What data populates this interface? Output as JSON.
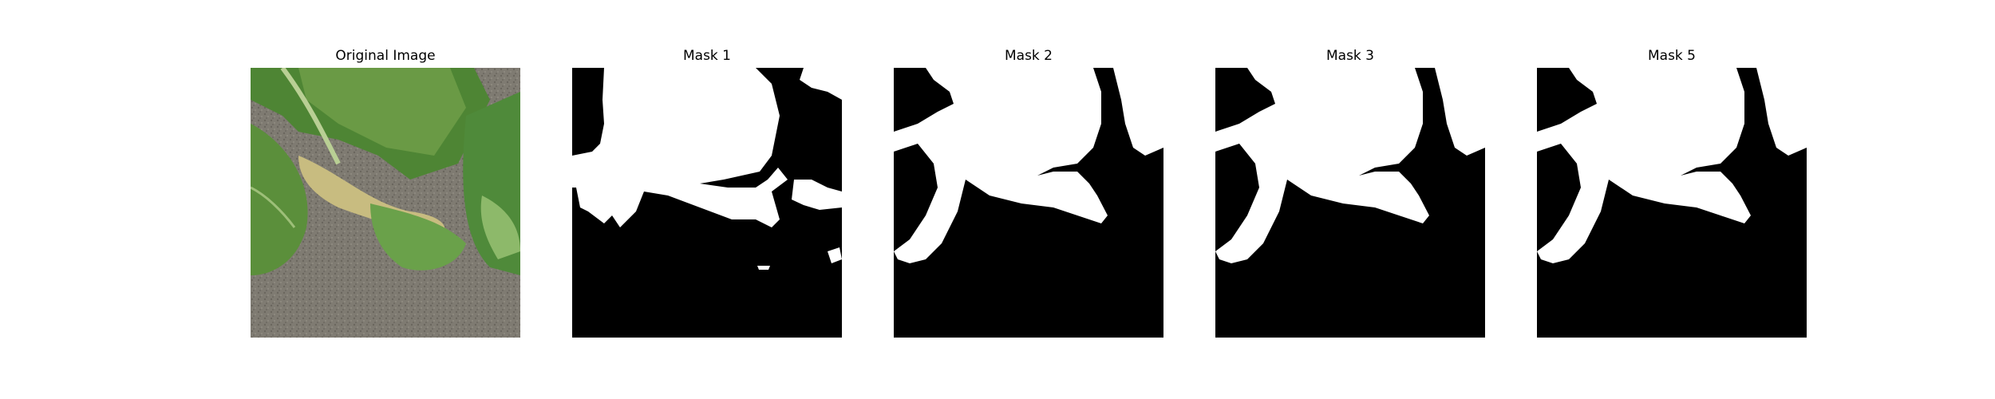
{
  "figure": {
    "panels": [
      {
        "title": "Original Image",
        "kind": "photo"
      },
      {
        "title": "Mask 1",
        "kind": "mask"
      },
      {
        "title": "Mask 2",
        "kind": "mask"
      },
      {
        "title": "Mask 3",
        "kind": "mask"
      },
      {
        "title": "Mask 5",
        "kind": "mask"
      }
    ]
  },
  "colors": {
    "background": "#ffffff",
    "mask_foreground": "#ffffff",
    "mask_background": "#000000",
    "soil": "#7f7b72",
    "leaf_dark": "#3f6e2c",
    "leaf_mid": "#5c8f3c",
    "leaf_light": "#8fb56a",
    "leaf_yellow": "#c9c07e"
  }
}
